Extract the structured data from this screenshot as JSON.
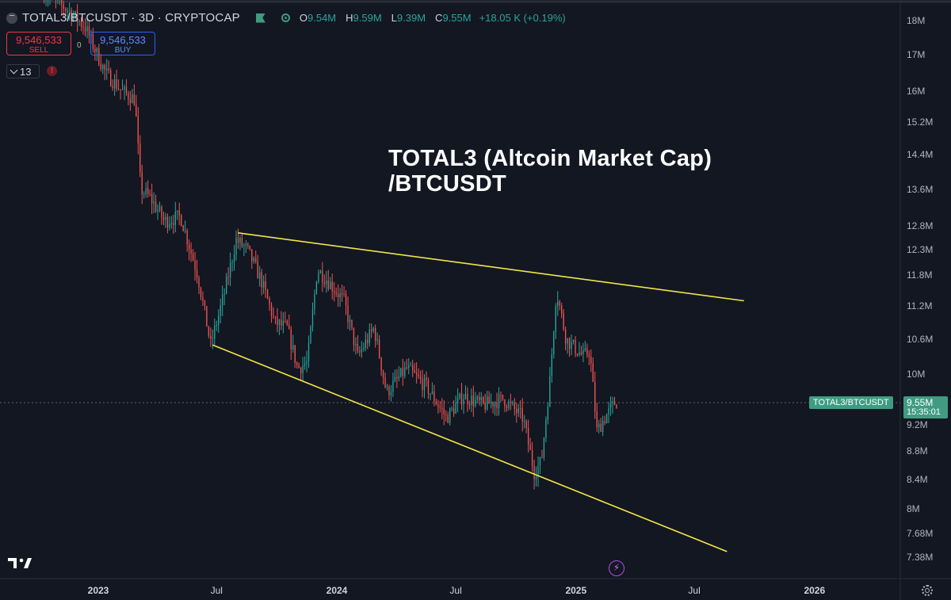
{
  "header": {
    "symbol_title": "TOTAL3/BTCUSDT · 3D · CRYPTOCAP",
    "ohlc": [
      {
        "key": "O",
        "value": "9.54M"
      },
      {
        "key": "H",
        "value": "9.59M"
      },
      {
        "key": "L",
        "value": "9.39M"
      },
      {
        "key": "C",
        "value": "9.55M"
      }
    ],
    "change": "+18.05 K (+0.19%)"
  },
  "trade": {
    "sell_price": "9,546,533",
    "sell_label": "SELL",
    "spread": "0",
    "buy_price": "9,546,533",
    "buy_label": "BUY"
  },
  "indicators": {
    "count": "13",
    "warning_icon": "warning-icon"
  },
  "annotation": {
    "line1": "TOTAL3 (Altcoin Market Cap)",
    "line2": "/BTCUSDT"
  },
  "price_tag": {
    "symbol": "TOTAL3/BTCUSDT",
    "price": "9.55M",
    "countdown": "15:35:01"
  },
  "colors": {
    "background": "#131722",
    "up": "#26a69a",
    "down": "#ef5350",
    "trendline": "#f0e648",
    "tag": "#3f9c82"
  },
  "chart_data": {
    "type": "candlestick",
    "timeframe": "3D",
    "y_scale": "log",
    "ylim": [
      7200000,
      18500000
    ],
    "xlim": [
      "2022-10-01",
      "2026-03-31"
    ],
    "yticks": [
      {
        "value": 18000000,
        "label": "18M"
      },
      {
        "value": 17000000,
        "label": "17M"
      },
      {
        "value": 16000000,
        "label": "16M"
      },
      {
        "value": 15200000,
        "label": "15.2M"
      },
      {
        "value": 14400000,
        "label": "14.4M"
      },
      {
        "value": 13600000,
        "label": "13.6M"
      },
      {
        "value": 12800000,
        "label": "12.8M"
      },
      {
        "value": 12300000,
        "label": "12.3M"
      },
      {
        "value": 11800000,
        "label": "11.8M"
      },
      {
        "value": 11200000,
        "label": "11.2M"
      },
      {
        "value": 10600000,
        "label": "10.6M"
      },
      {
        "value": 10000000,
        "label": "10M"
      },
      {
        "value": 9200000,
        "label": "9.2M"
      },
      {
        "value": 8800000,
        "label": "8.8M"
      },
      {
        "value": 8400000,
        "label": "8.4M"
      },
      {
        "value": 8000000,
        "label": "8M"
      },
      {
        "value": 7680000,
        "label": "7.68M"
      },
      {
        "value": 7380000,
        "label": "7.38M"
      }
    ],
    "xticks": [
      {
        "date": "2023-01-01",
        "label": "2023",
        "year": true
      },
      {
        "date": "2023-07-01",
        "label": "Jul",
        "year": false
      },
      {
        "date": "2024-01-01",
        "label": "2024",
        "year": true
      },
      {
        "date": "2024-07-01",
        "label": "Jul",
        "year": false
      },
      {
        "date": "2025-01-01",
        "label": "2025",
        "year": true
      },
      {
        "date": "2025-07-01",
        "label": "Jul",
        "year": false
      },
      {
        "date": "2026-01-01",
        "label": "2026",
        "year": true
      }
    ],
    "last_price": 9550000,
    "trendlines": [
      {
        "name": "resistance",
        "from": {
          "date": "2023-08-03",
          "value": 12650000
        },
        "to": {
          "date": "2025-09-15",
          "value": 11300000
        }
      },
      {
        "name": "support",
        "from": {
          "date": "2023-06-25",
          "value": 10500000
        },
        "to": {
          "date": "2025-08-20",
          "value": 7450000
        }
      }
    ],
    "path": [
      {
        "date": "2022-10-10",
        "value": 18900000
      },
      {
        "date": "2022-11-20",
        "value": 18300000
      },
      {
        "date": "2022-12-15",
        "value": 17800000
      },
      {
        "date": "2023-01-15",
        "value": 16500000
      },
      {
        "date": "2023-02-10",
        "value": 16000000
      },
      {
        "date": "2023-03-01",
        "value": 15800000
      },
      {
        "date": "2023-03-10",
        "value": 13600000
      },
      {
        "date": "2023-03-25",
        "value": 13400000
      },
      {
        "date": "2023-04-15",
        "value": 12900000
      },
      {
        "date": "2023-05-10",
        "value": 13000000
      },
      {
        "date": "2023-06-05",
        "value": 11800000
      },
      {
        "date": "2023-06-25",
        "value": 10500000
      },
      {
        "date": "2023-07-15",
        "value": 11400000
      },
      {
        "date": "2023-08-03",
        "value": 12500000
      },
      {
        "date": "2023-08-20",
        "value": 12300000
      },
      {
        "date": "2023-09-10",
        "value": 11700000
      },
      {
        "date": "2023-10-01",
        "value": 10900000
      },
      {
        "date": "2023-10-20",
        "value": 10800000
      },
      {
        "date": "2023-11-05",
        "value": 10100000
      },
      {
        "date": "2023-11-20",
        "value": 10200000
      },
      {
        "date": "2023-12-05",
        "value": 11900000
      },
      {
        "date": "2023-12-20",
        "value": 11700000
      },
      {
        "date": "2024-01-15",
        "value": 11300000
      },
      {
        "date": "2024-02-05",
        "value": 10300000
      },
      {
        "date": "2024-03-01",
        "value": 10800000
      },
      {
        "date": "2024-03-20",
        "value": 9700000
      },
      {
        "date": "2024-04-20",
        "value": 10100000
      },
      {
        "date": "2024-05-20",
        "value": 9800000
      },
      {
        "date": "2024-06-20",
        "value": 9300000
      },
      {
        "date": "2024-07-15",
        "value": 9650000
      },
      {
        "date": "2024-08-15",
        "value": 9500000
      },
      {
        "date": "2024-09-15",
        "value": 9600000
      },
      {
        "date": "2024-10-15",
        "value": 9300000
      },
      {
        "date": "2024-11-01",
        "value": 8500000
      },
      {
        "date": "2024-11-12",
        "value": 8650000
      },
      {
        "date": "2024-11-25",
        "value": 9900000
      },
      {
        "date": "2024-12-05",
        "value": 11500000
      },
      {
        "date": "2024-12-20",
        "value": 10600000
      },
      {
        "date": "2025-01-15",
        "value": 10300000
      },
      {
        "date": "2025-01-25",
        "value": 10400000
      },
      {
        "date": "2025-02-05",
        "value": 9100000
      },
      {
        "date": "2025-02-20",
        "value": 9350000
      },
      {
        "date": "2025-03-05",
        "value": 9550000
      }
    ]
  }
}
